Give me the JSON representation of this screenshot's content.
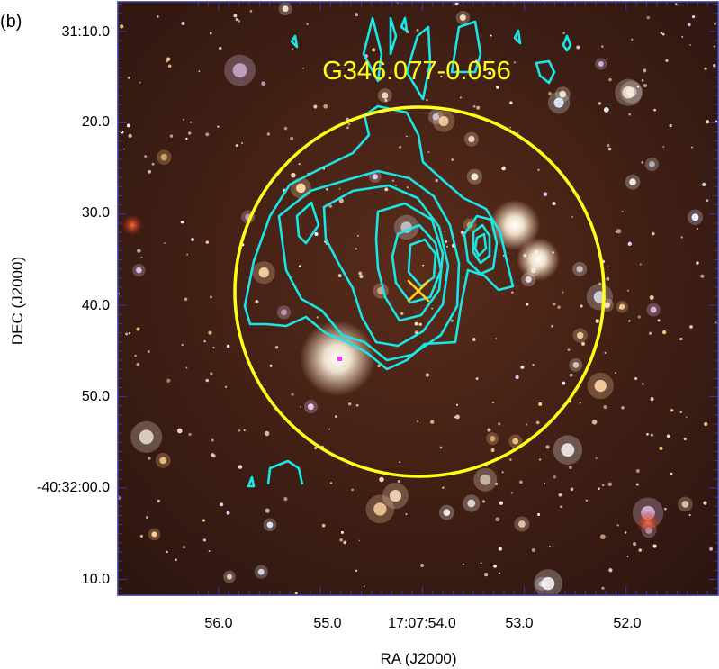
{
  "panel_label": "(b)",
  "source_name": "G346.077-0.056",
  "x_axis": {
    "title": "RA (J2000)",
    "ticks": [
      "56.0",
      "55.0",
      "17:07:54.0",
      "53.0",
      "52.0"
    ]
  },
  "y_axis": {
    "title": "DEC (J2000)",
    "ticks": [
      "31:10.0",
      "20.0",
      "30.0",
      "40.0",
      "50.0",
      "-40:32:00.0",
      "10.0"
    ]
  },
  "colors": {
    "frame": "#3a3aa0",
    "circle": "#ffff1a",
    "contour": "#19e6e6",
    "marker": "#ffd21a",
    "label": "#ffff1a",
    "background": "#3a1c12"
  }
}
